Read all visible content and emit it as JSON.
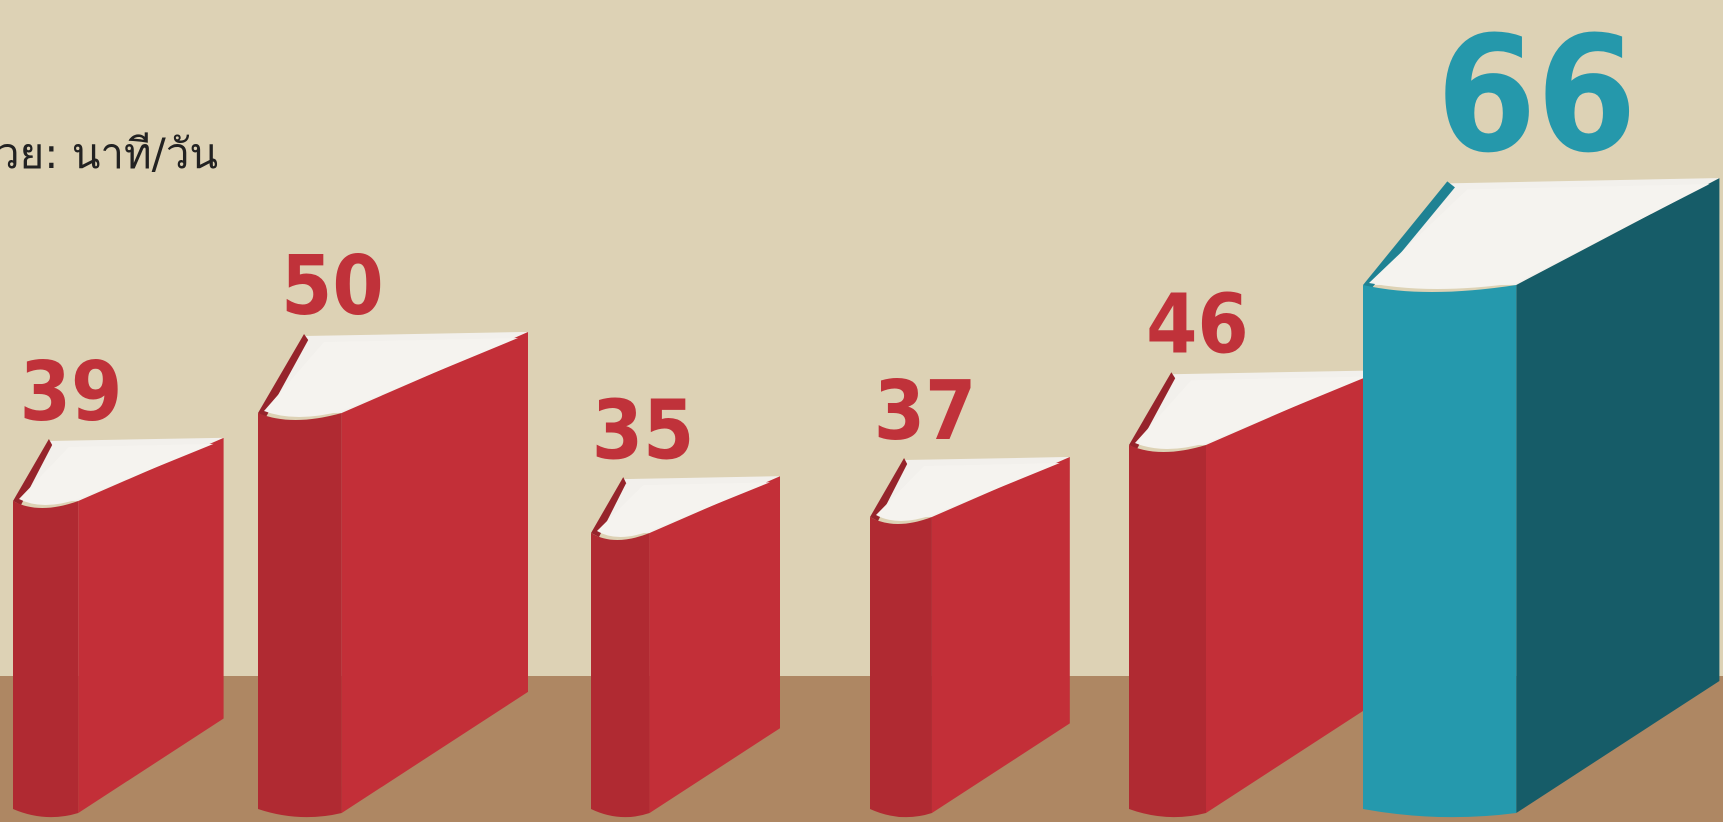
{
  "chart_data": {
    "type": "book-bar",
    "subtitle": "วย: นาที/วัน",
    "values": [
      39,
      50,
      35,
      37,
      46,
      66
    ],
    "colors": [
      "#c32f38",
      "#c32f38",
      "#c32f38",
      "#c32f38",
      "#c32f38",
      "#2599ad"
    ]
  }
}
